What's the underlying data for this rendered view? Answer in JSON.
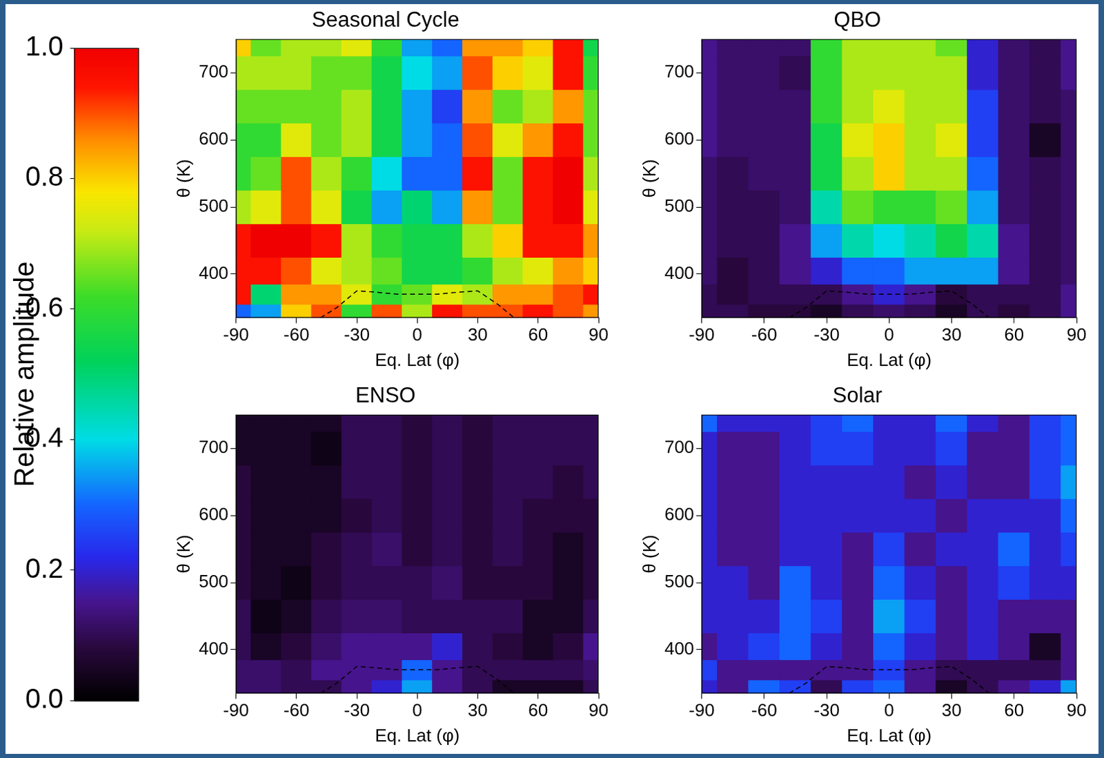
{
  "colorbar": {
    "label": "Relative amplitude",
    "range": [
      0,
      1
    ],
    "ticks": [
      {
        "value": 0,
        "label": "0.0"
      },
      0.2,
      0.4,
      0.6,
      0.8,
      {
        "value": 1,
        "label": "1.0"
      }
    ]
  },
  "chart_data": [
    {
      "type": "heatmap",
      "title": "Seasonal Cycle",
      "x_label": "Eq. Lat (φ)",
      "y_label": "θ (K)",
      "x": [
        -90,
        -75,
        -60,
        -45,
        -30,
        -15,
        0,
        15,
        30,
        45,
        60,
        75,
        90
      ],
      "y": [
        340,
        370,
        400,
        450,
        500,
        550,
        600,
        650,
        700,
        750
      ],
      "values": [
        [
          0.3,
          0.35,
          0.8,
          0.9,
          0.6,
          0.9,
          0.7,
          0.95,
          0.9,
          0.9,
          0.95,
          0.9,
          0.85
        ],
        [
          0.95,
          0.5,
          0.85,
          0.85,
          0.75,
          0.6,
          0.65,
          0.75,
          0.7,
          0.85,
          0.85,
          0.9,
          0.95
        ],
        [
          0.95,
          0.95,
          0.9,
          0.75,
          0.7,
          0.65,
          0.55,
          0.55,
          0.6,
          0.7,
          0.75,
          0.85,
          0.8
        ],
        [
          0.95,
          1.0,
          1.0,
          0.95,
          0.7,
          0.6,
          0.55,
          0.55,
          0.7,
          0.8,
          0.95,
          0.95,
          0.85
        ],
        [
          0.7,
          0.75,
          0.9,
          0.75,
          0.55,
          0.35,
          0.5,
          0.35,
          0.85,
          0.65,
          0.95,
          1.0,
          0.75
        ],
        [
          0.6,
          0.65,
          0.9,
          0.7,
          0.6,
          0.4,
          0.3,
          0.3,
          0.95,
          0.65,
          0.95,
          1.0,
          0.7
        ],
        [
          0.6,
          0.6,
          0.75,
          0.65,
          0.7,
          0.55,
          0.35,
          0.3,
          0.9,
          0.75,
          0.85,
          0.95,
          0.65
        ],
        [
          0.65,
          0.65,
          0.65,
          0.65,
          0.7,
          0.55,
          0.35,
          0.25,
          0.85,
          0.65,
          0.7,
          0.85,
          0.65
        ],
        [
          0.7,
          0.7,
          0.7,
          0.65,
          0.65,
          0.55,
          0.4,
          0.35,
          0.9,
          0.8,
          0.75,
          0.95,
          0.6
        ],
        [
          0.8,
          0.65,
          0.7,
          0.7,
          0.75,
          0.6,
          0.35,
          0.3,
          0.85,
          0.85,
          0.8,
          0.95,
          0.55
        ]
      ],
      "series": [
        {
          "type": "line",
          "line_style": "dashed",
          "color": "#000000",
          "x": [
            -48,
            -40,
            -30,
            -20,
            -10,
            0,
            10,
            20,
            30,
            40,
            48
          ],
          "values": [
            335,
            350,
            375,
            373,
            370,
            370,
            370,
            373,
            375,
            355,
            335
          ]
        }
      ],
      "xlim": [
        -90,
        90
      ],
      "ylim": [
        335,
        750
      ],
      "xticks": [
        -90,
        -60,
        -30,
        0,
        30,
        60,
        90
      ],
      "yticks": [
        400,
        500,
        600,
        700
      ],
      "grid": false
    },
    {
      "type": "heatmap",
      "title": "QBO",
      "x_label": "Eq. Lat (φ)",
      "y_label": "θ (K)",
      "x": [
        -90,
        -75,
        -60,
        -45,
        -30,
        -15,
        0,
        15,
        30,
        45,
        60,
        75,
        90
      ],
      "y": [
        340,
        370,
        400,
        450,
        500,
        550,
        600,
        650,
        700,
        750
      ],
      "values": [
        [
          0.1,
          0.1,
          0.08,
          0.08,
          0.05,
          0.1,
          0.12,
          0.1,
          0.05,
          0.1,
          0.08,
          0.1,
          0.15
        ],
        [
          0.1,
          0.08,
          0.1,
          0.1,
          0.1,
          0.15,
          0.2,
          0.15,
          0.08,
          0.1,
          0.1,
          0.1,
          0.15
        ],
        [
          0.12,
          0.08,
          0.1,
          0.15,
          0.2,
          0.3,
          0.3,
          0.35,
          0.35,
          0.35,
          0.15,
          0.1,
          0.12
        ],
        [
          0.12,
          0.1,
          0.1,
          0.15,
          0.35,
          0.45,
          0.4,
          0.45,
          0.55,
          0.45,
          0.15,
          0.1,
          0.12
        ],
        [
          0.12,
          0.1,
          0.1,
          0.12,
          0.45,
          0.65,
          0.6,
          0.6,
          0.65,
          0.35,
          0.12,
          0.1,
          0.12
        ],
        [
          0.12,
          0.1,
          0.12,
          0.12,
          0.55,
          0.7,
          0.8,
          0.7,
          0.7,
          0.3,
          0.12,
          0.1,
          0.12
        ],
        [
          0.15,
          0.12,
          0.12,
          0.12,
          0.55,
          0.75,
          0.8,
          0.7,
          0.75,
          0.25,
          0.12,
          0.05,
          0.12
        ],
        [
          0.15,
          0.12,
          0.12,
          0.12,
          0.6,
          0.7,
          0.75,
          0.7,
          0.7,
          0.25,
          0.12,
          0.1,
          0.12
        ],
        [
          0.15,
          0.12,
          0.12,
          0.1,
          0.6,
          0.7,
          0.7,
          0.7,
          0.7,
          0.2,
          0.12,
          0.1,
          0.15
        ],
        [
          0.15,
          0.12,
          0.12,
          0.12,
          0.6,
          0.7,
          0.7,
          0.7,
          0.65,
          0.2,
          0.12,
          0.1,
          0.15
        ]
      ],
      "series": [
        {
          "type": "line",
          "line_style": "dashed",
          "color": "#000000",
          "x": [
            -48,
            -40,
            -30,
            -20,
            -10,
            0,
            10,
            20,
            30,
            40,
            48
          ],
          "values": [
            335,
            350,
            375,
            373,
            370,
            370,
            370,
            373,
            375,
            355,
            335
          ]
        }
      ],
      "xlim": [
        -90,
        90
      ],
      "ylim": [
        335,
        750
      ],
      "xticks": [
        -90,
        -60,
        -30,
        0,
        30,
        60,
        90
      ],
      "yticks": [
        400,
        500,
        600,
        700
      ],
      "grid": false
    },
    {
      "type": "heatmap",
      "title": "ENSO",
      "x_label": "Eq. Lat (φ)",
      "y_label": "θ (K)",
      "x": [
        -90,
        -75,
        -60,
        -45,
        -30,
        -15,
        0,
        15,
        30,
        45,
        60,
        75,
        90
      ],
      "y": [
        340,
        370,
        400,
        450,
        500,
        550,
        600,
        650,
        700,
        750
      ],
      "values": [
        [
          0.12,
          0.12,
          0.1,
          0.1,
          0.15,
          0.2,
          0.35,
          0.15,
          0.1,
          0.05,
          0.05,
          0.05,
          0.1
        ],
        [
          0.12,
          0.12,
          0.1,
          0.15,
          0.15,
          0.15,
          0.3,
          0.15,
          0.1,
          0.1,
          0.1,
          0.1,
          0.12
        ],
        [
          0.1,
          0.05,
          0.08,
          0.12,
          0.15,
          0.15,
          0.15,
          0.2,
          0.1,
          0.08,
          0.05,
          0.08,
          0.15
        ],
        [
          0.1,
          0.03,
          0.05,
          0.1,
          0.12,
          0.12,
          0.1,
          0.1,
          0.1,
          0.1,
          0.05,
          0.05,
          0.1
        ],
        [
          0.08,
          0.05,
          0.03,
          0.08,
          0.1,
          0.1,
          0.1,
          0.12,
          0.08,
          0.08,
          0.08,
          0.05,
          0.08
        ],
        [
          0.08,
          0.05,
          0.05,
          0.08,
          0.1,
          0.12,
          0.08,
          0.1,
          0.08,
          0.1,
          0.08,
          0.05,
          0.08
        ],
        [
          0.08,
          0.05,
          0.05,
          0.05,
          0.08,
          0.1,
          0.08,
          0.1,
          0.08,
          0.1,
          0.08,
          0.08,
          0.08
        ],
        [
          0.08,
          0.05,
          0.05,
          0.05,
          0.1,
          0.1,
          0.08,
          0.1,
          0.08,
          0.1,
          0.1,
          0.08,
          0.1
        ],
        [
          0.05,
          0.05,
          0.05,
          0.03,
          0.1,
          0.1,
          0.08,
          0.1,
          0.08,
          0.1,
          0.1,
          0.1,
          0.1
        ],
        [
          0.05,
          0.05,
          0.05,
          0.05,
          0.1,
          0.1,
          0.08,
          0.1,
          0.08,
          0.1,
          0.1,
          0.1,
          0.1
        ]
      ],
      "series": [
        {
          "type": "line",
          "line_style": "dashed",
          "color": "#000000",
          "x": [
            -48,
            -40,
            -30,
            -20,
            -10,
            0,
            10,
            20,
            30,
            40,
            48
          ],
          "values": [
            335,
            350,
            375,
            373,
            370,
            370,
            370,
            373,
            375,
            355,
            335
          ]
        }
      ],
      "xlim": [
        -90,
        90
      ],
      "ylim": [
        335,
        750
      ],
      "xticks": [
        -90,
        -60,
        -30,
        0,
        30,
        60,
        90
      ],
      "yticks": [
        400,
        500,
        600,
        700
      ],
      "grid": false
    },
    {
      "type": "heatmap",
      "title": "Solar",
      "x_label": "Eq. Lat (φ)",
      "y_label": "θ (K)",
      "x": [
        -90,
        -75,
        -60,
        -45,
        -30,
        -15,
        0,
        15,
        30,
        45,
        60,
        75,
        90
      ],
      "y": [
        340,
        370,
        400,
        450,
        500,
        550,
        600,
        650,
        700,
        750
      ],
      "values": [
        [
          0.2,
          0.15,
          0.3,
          0.25,
          0.1,
          0.25,
          0.3,
          0.15,
          0.05,
          0.1,
          0.15,
          0.2,
          0.35
        ],
        [
          0.25,
          0.15,
          0.15,
          0.15,
          0.15,
          0.15,
          0.25,
          0.15,
          0.1,
          0.1,
          0.1,
          0.1,
          0.15
        ],
        [
          0.15,
          0.2,
          0.25,
          0.3,
          0.2,
          0.15,
          0.3,
          0.2,
          0.15,
          0.2,
          0.15,
          0.05,
          0.15
        ],
        [
          0.2,
          0.2,
          0.2,
          0.3,
          0.25,
          0.15,
          0.35,
          0.25,
          0.15,
          0.2,
          0.15,
          0.15,
          0.15
        ],
        [
          0.2,
          0.2,
          0.15,
          0.3,
          0.2,
          0.15,
          0.3,
          0.2,
          0.15,
          0.2,
          0.25,
          0.2,
          0.2
        ],
        [
          0.2,
          0.15,
          0.15,
          0.2,
          0.2,
          0.15,
          0.25,
          0.15,
          0.2,
          0.2,
          0.3,
          0.2,
          0.25
        ],
        [
          0.2,
          0.15,
          0.15,
          0.2,
          0.2,
          0.2,
          0.2,
          0.2,
          0.15,
          0.2,
          0.2,
          0.2,
          0.3
        ],
        [
          0.2,
          0.15,
          0.15,
          0.2,
          0.2,
          0.2,
          0.2,
          0.15,
          0.2,
          0.15,
          0.15,
          0.25,
          0.35
        ],
        [
          0.2,
          0.15,
          0.15,
          0.2,
          0.25,
          0.25,
          0.2,
          0.2,
          0.25,
          0.15,
          0.15,
          0.25,
          0.3
        ],
        [
          0.3,
          0.2,
          0.2,
          0.2,
          0.25,
          0.3,
          0.2,
          0.2,
          0.3,
          0.2,
          0.15,
          0.25,
          0.3
        ]
      ],
      "series": [
        {
          "type": "line",
          "line_style": "dashed",
          "color": "#000000",
          "x": [
            -48,
            -40,
            -30,
            -20,
            -10,
            0,
            10,
            20,
            30,
            40,
            48
          ],
          "values": [
            335,
            350,
            375,
            373,
            370,
            370,
            370,
            373,
            375,
            355,
            335
          ]
        }
      ],
      "xlim": [
        -90,
        90
      ],
      "ylim": [
        335,
        750
      ],
      "xticks": [
        -90,
        -60,
        -30,
        0,
        30,
        60,
        90
      ],
      "yticks": [
        400,
        500,
        600,
        700
      ],
      "grid": false
    }
  ]
}
